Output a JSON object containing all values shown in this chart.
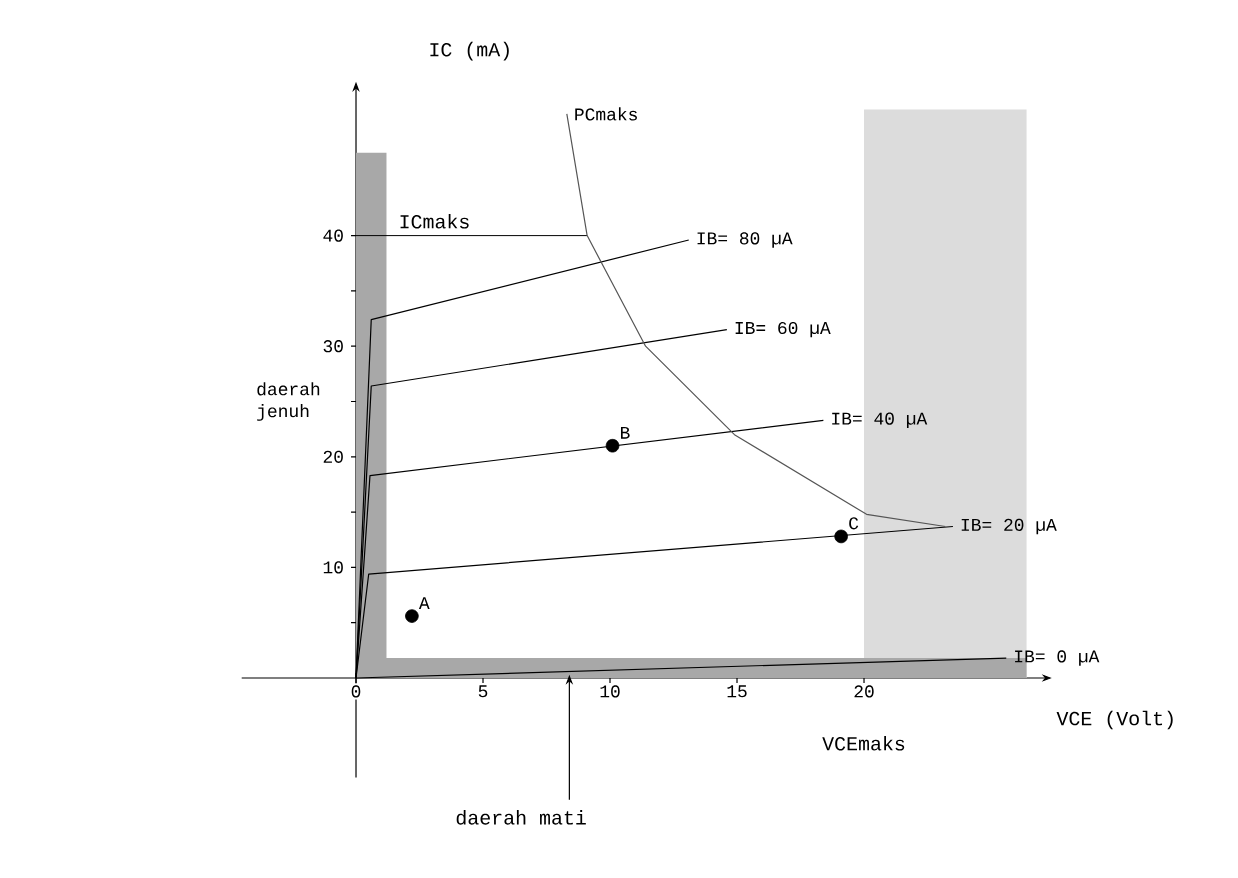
{
  "chart_data": {
    "type": "line",
    "xlabel": "VCE (Volt)",
    "ylabel": "IC (mA)",
    "xlim": [
      -4.5,
      27
    ],
    "ylim": [
      -9,
      53
    ],
    "xticks": [
      0,
      5,
      10,
      15,
      20
    ],
    "yticks": [
      {
        "value": 5,
        "label": null
      },
      10,
      {
        "value": 15,
        "label": null
      },
      20,
      {
        "value": 25,
        "label": null
      },
      30,
      {
        "value": 35,
        "label": null
      },
      40
    ],
    "legend": false,
    "grid": false,
    "line_style": "solid",
    "series": [
      {
        "name": "IB= 80 µA",
        "color": "#000000",
        "x": [
          0,
          0.6,
          13.1
        ],
        "values": [
          0,
          32.4,
          39.6
        ]
      },
      {
        "name": "IB= 60 µA",
        "color": "#000000",
        "x": [
          0,
          0.6,
          14.6
        ],
        "values": [
          0,
          26.4,
          31.5
        ]
      },
      {
        "name": "IB= 40 µA",
        "color": "#000000",
        "x": [
          0,
          0.55,
          18.4
        ],
        "values": [
          0,
          18.3,
          23.3
        ]
      },
      {
        "name": "IB= 20 µA",
        "color": "#000000",
        "x": [
          0,
          0.5,
          23.5
        ],
        "values": [
          0,
          9.4,
          13.7
        ]
      },
      {
        "name": "IB= 0 µA",
        "color": "#000000",
        "x": [
          0,
          25.6
        ],
        "values": [
          0,
          1.8
        ]
      },
      {
        "name": "PCmaks",
        "color": "#555555",
        "x": [
          8.3,
          9.1,
          11.4,
          14.9,
          20.1,
          23.2
        ],
        "values": [
          51,
          40,
          30,
          22,
          14.8,
          13.7
        ]
      },
      {
        "name": "A",
        "type": "scatter",
        "color": "#000000",
        "x": [
          2.2
        ],
        "values": [
          5.6
        ]
      },
      {
        "name": "B",
        "type": "scatter",
        "color": "#000000",
        "x": [
          10.1
        ],
        "values": [
          21.0
        ]
      },
      {
        "name": "C",
        "type": "scatter",
        "color": "#000000",
        "x": [
          19.1
        ],
        "values": [
          12.8
        ]
      }
    ],
    "bands": [
      {
        "axis": "x",
        "from": 20,
        "to": 26.4,
        "label": "VCEmaks",
        "color": "#dcdcdc"
      },
      {
        "axis": "x",
        "from": 0,
        "to": 1.2,
        "label": "daerah jenuh",
        "color": "#a8a8a8"
      },
      {
        "axis": "y",
        "from": 0,
        "to": 1.8,
        "label": "daerah mati",
        "color": "#a8a8a8"
      }
    ],
    "ref_lines": [
      {
        "axis": "y",
        "value": 40,
        "label": "ICmaks",
        "color": "#000000"
      }
    ]
  }
}
